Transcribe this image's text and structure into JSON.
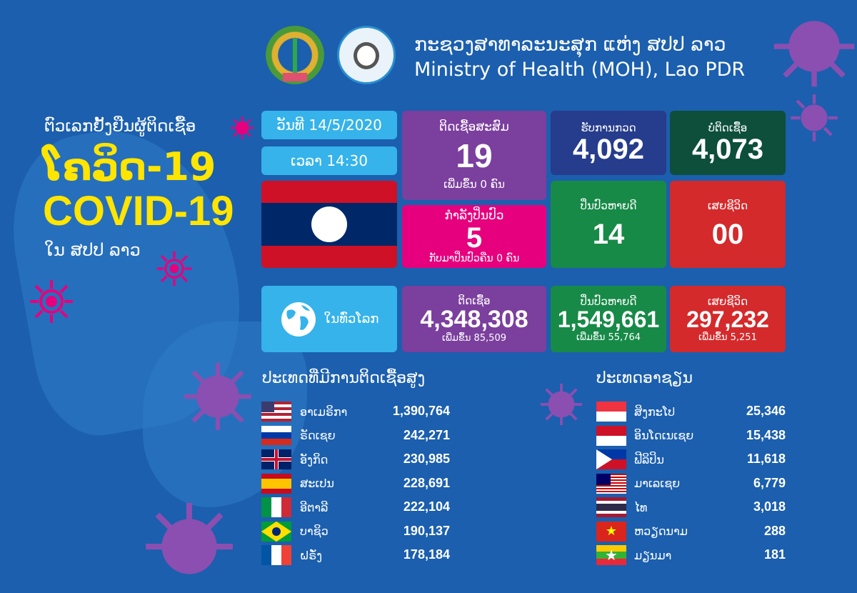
{
  "header": {
    "title_lao": "ກະຊວງສາທາລະນະສຸກ ແຫ່ງ ສປປ ລາວ",
    "title_en": "Ministry of Health (MOH), Lao PDR"
  },
  "hero": {
    "line1": "ຕົວເລກຢັ້ງຢືນຜູ້ຕິດເຊື້ອ",
    "line2": "ໂຄວິດ-19",
    "line3": "COVID-19",
    "line4": "ໃນ ສປປ ລາວ"
  },
  "colors": {
    "background": "#1b5fae",
    "accent_yellow": "#ffe500",
    "purple": "#7b3f9e",
    "pink": "#e6007e",
    "navy": "#263c8c",
    "dark_green": "#0d4f3a",
    "green": "#178a47",
    "red": "#d42a2c",
    "light_blue": "#35b3ea"
  },
  "laos": {
    "date": "ວັນທີ 14/5/2020",
    "time": "ເວລາ 14:30",
    "cumulative": {
      "label": "ຕິດເຊື້ອສະສົມ",
      "value": "19",
      "sub": "ເພີ່ມຂຶ້ນ 0 ຄົນ"
    },
    "treating": {
      "label": "ກຳລັງປິ່ນປົວ",
      "value": "5",
      "sub": "ກັບມາປິ່ນປົວຄືນ 0 ຄົນ"
    },
    "tested": {
      "label": "ຮັບການກວດ",
      "value": "4,092"
    },
    "negative": {
      "label": "ບໍ່ຕິດເຊື້ອ",
      "value": "4,073"
    },
    "recovered": {
      "label": "ປິ່ນປົວຫາຍດີ",
      "value": "14"
    },
    "deaths": {
      "label": "ເສຍຊີວິດ",
      "value": "00"
    }
  },
  "world": {
    "label": "ໃນທົ່ວໂລກ",
    "icon": "globe-icon",
    "infected": {
      "label": "ຕິດເຊື້ອ",
      "value": "4,348,308",
      "sub": "ເພີ່ມຂຶ້ນ 85,509"
    },
    "recovered": {
      "label": "ປິ່ນປົວຫາຍດີ",
      "value": "1,549,661",
      "sub": "ເພີ່ມຂຶ້ນ 55,764"
    },
    "deaths": {
      "label": "ເສຍຊີວິດ",
      "value": "297,232",
      "sub": "ເພີ່ມຂຶ້ນ 5,251"
    }
  },
  "top_countries": {
    "title": "ປະເທດທີ່ມີການຕິດເຊື້ອສູງ",
    "items": [
      {
        "name": "ອາເມຣິກາ",
        "value": "1,390,764",
        "flag": "us"
      },
      {
        "name": "ຣັດເຊຍ",
        "value": "242,271",
        "flag": "ru"
      },
      {
        "name": "ອັງກິດ",
        "value": "230,985",
        "flag": "gb"
      },
      {
        "name": "ສະເປນ",
        "value": "228,691",
        "flag": "es"
      },
      {
        "name": "ອີຕາລີ",
        "value": "222,104",
        "flag": "it"
      },
      {
        "name": "ບາຊິວ",
        "value": "190,137",
        "flag": "br"
      },
      {
        "name": "ຝຣັ່ງ",
        "value": "178,184",
        "flag": "fr"
      }
    ]
  },
  "asean": {
    "title": "ປະເທດອາຊຽນ",
    "items": [
      {
        "name": "ສິງກະໂປ",
        "value": "25,346",
        "flag": "sg"
      },
      {
        "name": "ອິນໂດເນເຊຍ",
        "value": "15,438",
        "flag": "id"
      },
      {
        "name": "ຟີລິປິນ",
        "value": "11,618",
        "flag": "ph"
      },
      {
        "name": "ມາເລເຊຍ",
        "value": "6,779",
        "flag": "my"
      },
      {
        "name": "ໄທ",
        "value": "3,018",
        "flag": "th"
      },
      {
        "name": "ຫວຽດນາມ",
        "value": "288",
        "flag": "vn"
      },
      {
        "name": "ມຽນມາ",
        "value": "181",
        "flag": "mm"
      }
    ]
  }
}
